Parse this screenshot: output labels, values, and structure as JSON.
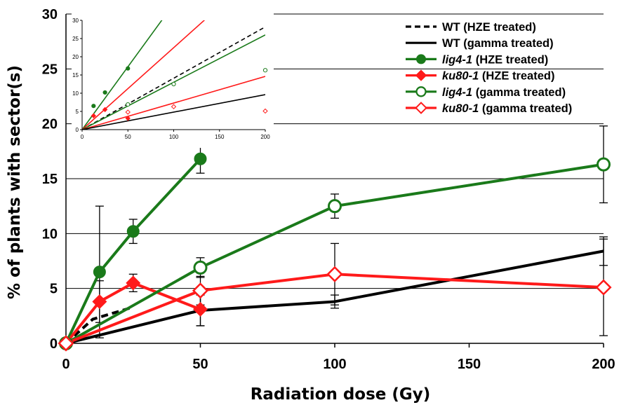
{
  "chart_data": {
    "type": "line",
    "xlabel": "Radiation dose (Gy)",
    "ylabel": "% of plants with sector(s)",
    "xlim": [
      0,
      200
    ],
    "ylim": [
      0,
      30
    ],
    "xticks": [
      0,
      50,
      100,
      150,
      200
    ],
    "yticks": [
      0,
      5,
      10,
      15,
      20,
      25,
      30
    ],
    "grid": "horizontal",
    "legend_position": "top-right",
    "colors": {
      "black": "#000000",
      "green": "#1a7a1a",
      "red": "#ff1a1a"
    },
    "series": [
      {
        "name_italic": "",
        "name_rest": "WT (HZE treated)",
        "style": "dashed",
        "color": "black",
        "marker": "none",
        "x": [
          0,
          10,
          25
        ],
        "y": [
          0,
          2.2,
          3.3
        ],
        "err": null
      },
      {
        "name_italic": "",
        "name_rest": "WT (gamma treated)",
        "style": "solid",
        "color": "black",
        "marker": "none",
        "x": [
          0,
          50,
          100,
          200
        ],
        "y": [
          0,
          3.0,
          3.8,
          8.4
        ],
        "err": [
          0,
          1.4,
          0.6,
          1.3
        ]
      },
      {
        "name_italic": "lig4-1",
        "name_rest": " (HZE treated)",
        "style": "solid",
        "color": "green",
        "marker": "filled-circle",
        "x": [
          0,
          12.5,
          25,
          50
        ],
        "y": [
          0,
          6.5,
          10.2,
          16.8
        ],
        "err": [
          0,
          6.0,
          1.1,
          1.3
        ]
      },
      {
        "name_italic": "ku80-1",
        "name_rest": " (HZE treated)",
        "style": "solid",
        "color": "red",
        "marker": "filled-diamond",
        "x": [
          0,
          12.5,
          25,
          50
        ],
        "y": [
          0,
          3.8,
          5.5,
          3.1
        ],
        "err": [
          0,
          1.9,
          0.8,
          1.5
        ]
      },
      {
        "name_italic": "lig4-1",
        "name_rest": " (gamma treated)",
        "style": "solid",
        "color": "green",
        "marker": "open-circle",
        "x": [
          0,
          50,
          100,
          200
        ],
        "y": [
          0,
          6.9,
          12.5,
          16.3
        ],
        "err": [
          0,
          0.9,
          1.1,
          3.5
        ]
      },
      {
        "name_italic": "ku80-1",
        "name_rest": " (gamma treated)",
        "style": "solid",
        "color": "red",
        "marker": "open-diamond",
        "x": [
          0,
          50,
          100,
          200
        ],
        "y": [
          0,
          4.8,
          6.3,
          5.1
        ],
        "err": [
          0,
          1.3,
          2.8,
          4.4
        ]
      }
    ],
    "inset": {
      "xlim": [
        0,
        200
      ],
      "ylim": [
        0,
        30
      ],
      "xticks": [
        0,
        50,
        100,
        150,
        200
      ],
      "yticks": [
        0,
        5,
        10,
        15,
        20,
        25,
        30
      ],
      "points": [
        {
          "color": "green",
          "marker": "filled-circle",
          "x": [
            12.5,
            25,
            50
          ],
          "y": [
            6.5,
            10.2,
            16.8
          ]
        },
        {
          "color": "red",
          "marker": "filled-diamond",
          "x": [
            12.5,
            25,
            50
          ],
          "y": [
            3.8,
            5.5,
            3.1
          ]
        },
        {
          "color": "green",
          "marker": "open-circle",
          "x": [
            50,
            100,
            200
          ],
          "y": [
            6.9,
            12.5,
            16.3
          ]
        },
        {
          "color": "red",
          "marker": "open-diamond",
          "x": [
            50,
            100,
            200
          ],
          "y": [
            4.8,
            6.3,
            5.1
          ]
        }
      ],
      "fit_lines": [
        {
          "color": "green",
          "style": "solid",
          "slope": 0.345
        },
        {
          "color": "red",
          "style": "solid",
          "slope": 0.225
        },
        {
          "color": "black",
          "style": "dashed",
          "slope": 0.141
        },
        {
          "color": "green",
          "style": "solid",
          "slope": 0.13
        },
        {
          "color": "red",
          "style": "solid",
          "slope": 0.073
        },
        {
          "color": "black",
          "style": "solid",
          "slope": 0.048
        }
      ]
    }
  }
}
